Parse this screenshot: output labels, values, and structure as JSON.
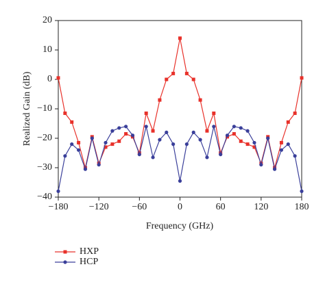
{
  "chart_data": {
    "type": "line",
    "x_label": "Frequency (GHz)",
    "y_label": "Realized Gain (dB)",
    "x": [
      -180,
      -170,
      -160,
      -150,
      -140,
      -130,
      -120,
      -110,
      -100,
      -90,
      -80,
      -70,
      -60,
      -50,
      -40,
      -30,
      -20,
      -10,
      0,
      10,
      20,
      30,
      40,
      50,
      60,
      70,
      80,
      90,
      100,
      110,
      120,
      130,
      140,
      150,
      160,
      170,
      180
    ],
    "series": [
      {
        "name": "HXP",
        "color": "#e8312a",
        "marker": "square",
        "values": [
          0.5,
          -11.5,
          -14.5,
          -21.5,
          -30,
          -19.5,
          -28.5,
          -23,
          -22,
          -21,
          -18.5,
          -19.5,
          -25,
          -11.5,
          -17.5,
          -7,
          0,
          2,
          14,
          2,
          0,
          -7,
          -17.5,
          -11.5,
          -25,
          -19.5,
          -18.5,
          -21,
          -22,
          -23,
          -28.5,
          -19.5,
          -30,
          -21.5,
          -14.5,
          -11.5,
          0.5
        ]
      },
      {
        "name": "HCP",
        "color": "#3a3f9a",
        "marker": "circle",
        "values": [
          -38,
          -26,
          -22,
          -24,
          -30.5,
          -20,
          -29,
          -21.5,
          -17.5,
          -16.5,
          -16,
          -19,
          -25.5,
          -16,
          -26.5,
          -20.5,
          -18,
          -22,
          -34.5,
          -22,
          -18,
          -20.5,
          -26.5,
          -16,
          -25.5,
          -19,
          -16,
          -16.5,
          -17.5,
          -21.5,
          -29,
          -20,
          -30.5,
          -24,
          -22,
          -26,
          -38
        ]
      }
    ],
    "xlim": [
      -180,
      180
    ],
    "xticks": [
      {
        "value": -180,
        "label": "−180"
      },
      {
        "value": -120,
        "label": "−120"
      },
      {
        "value": -60,
        "label": "−60"
      },
      0,
      60,
      120,
      180
    ],
    "ylim": [
      -40,
      20
    ],
    "yticks": [
      {
        "value": -40,
        "label": "−40"
      },
      {
        "value": -30,
        "label": "−30"
      },
      {
        "value": -20,
        "label": "−20"
      },
      {
        "value": -10,
        "label": "−10"
      },
      0,
      10,
      20
    ],
    "legend": "bottom-left"
  }
}
